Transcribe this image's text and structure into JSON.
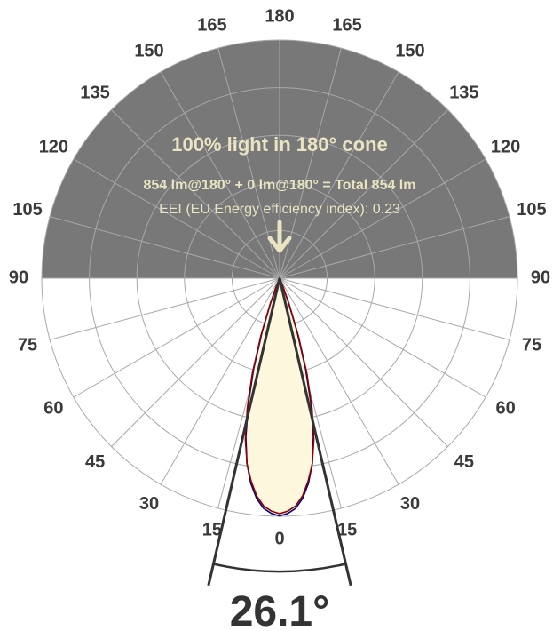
{
  "chart_data": {
    "type": "polar",
    "upper_hemisphere_shaded": true,
    "colors": {
      "shade": "#787878",
      "curve_c0": "#8b0000",
      "curve_c90": "#00008b",
      "fill": "#fdf8dd",
      "cone_text": "#e9e4c2"
    },
    "angle_labels_left": [
      "180",
      "165",
      "150",
      "135",
      "120",
      "105",
      "90",
      "75",
      "60",
      "45",
      "30",
      "15",
      "0"
    ],
    "angle_labels_right": [
      "165",
      "150",
      "135",
      "120",
      "105",
      "90",
      "75",
      "60",
      "45",
      "30",
      "15"
    ],
    "annotations": {
      "cone": "100% light in 180° cone",
      "flux": "854 lm@180° + 0 lm@180° = Total 854 lm",
      "eei": "EEI (EU Energy efficiency index): 0.23"
    },
    "beam_angle": 26.1,
    "beam_angle_label": "26.1°",
    "series": [
      {
        "key": "c0",
        "points": [
          [
            0,
            1.0
          ],
          [
            2,
            0.99
          ],
          [
            4,
            0.97
          ],
          [
            6,
            0.93
          ],
          [
            8,
            0.87
          ],
          [
            10,
            0.8
          ],
          [
            12,
            0.7
          ],
          [
            14,
            0.57
          ],
          [
            16,
            0.42
          ],
          [
            18,
            0.26
          ],
          [
            20,
            0.12
          ],
          [
            22,
            0.04
          ],
          [
            24,
            0.0
          ]
        ]
      },
      {
        "key": "c90",
        "points": [
          [
            0,
            1.01
          ],
          [
            2,
            1.0
          ],
          [
            4,
            0.98
          ],
          [
            6,
            0.94
          ],
          [
            8,
            0.88
          ],
          [
            10,
            0.8
          ],
          [
            12,
            0.69
          ],
          [
            14,
            0.55
          ],
          [
            16,
            0.4
          ],
          [
            18,
            0.24
          ],
          [
            20,
            0.11
          ],
          [
            22,
            0.03
          ],
          [
            24,
            0.0
          ]
        ]
      }
    ]
  }
}
